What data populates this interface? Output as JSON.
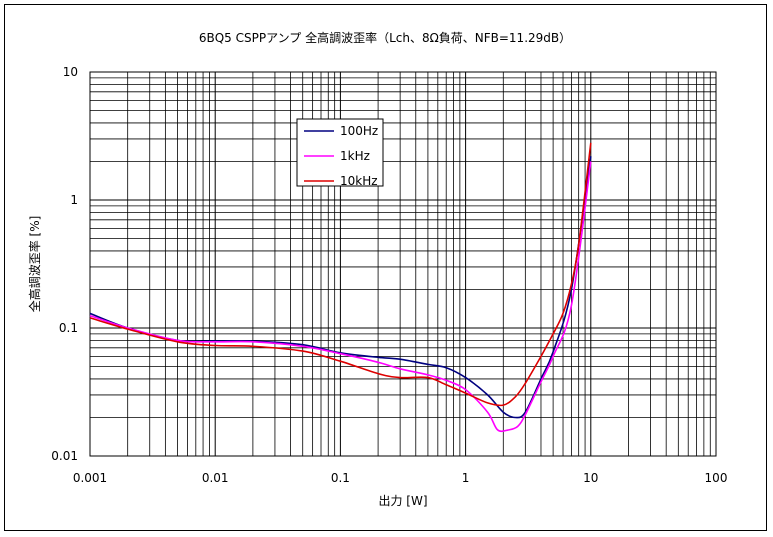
{
  "chart_data": {
    "type": "line",
    "title": "6BQ5 CSPPアンプ 全高調波歪率（Lch、8Ω負荷、NFB=11.29dB）",
    "xlabel": "出力 [W]",
    "ylabel": "全高調波歪率 [%]",
    "x_scale": "log",
    "y_scale": "log",
    "xlim": [
      0.001,
      100
    ],
    "ylim": [
      0.01,
      10
    ],
    "x_ticks": [
      0.001,
      0.01,
      0.1,
      1,
      10,
      100
    ],
    "x_tick_labels": [
      "0.001",
      "0.01",
      "0.1",
      "1",
      "10",
      "100"
    ],
    "y_ticks": [
      0.01,
      0.1,
      1,
      10
    ],
    "y_tick_labels": [
      "0.01",
      "0.1",
      "1",
      "10"
    ],
    "grid": true,
    "legend": "upper-left",
    "series": [
      {
        "name": "100Hz",
        "color": "#000080",
        "x": [
          0.001,
          0.002,
          0.005,
          0.01,
          0.02,
          0.05,
          0.1,
          0.2,
          0.3,
          0.5,
          0.7,
          1.0,
          1.5,
          2.0,
          2.5,
          3.0,
          4.0,
          5.0,
          7.0,
          10.0
        ],
        "y": [
          0.13,
          0.1,
          0.08,
          0.079,
          0.079,
          0.074,
          0.064,
          0.059,
          0.057,
          0.052,
          0.049,
          0.041,
          0.03,
          0.022,
          0.02,
          0.022,
          0.04,
          0.065,
          0.2,
          2.2
        ]
      },
      {
        "name": "1kHz",
        "color": "#ff00ff",
        "x": [
          0.001,
          0.002,
          0.005,
          0.01,
          0.02,
          0.05,
          0.1,
          0.2,
          0.3,
          0.5,
          0.7,
          1.0,
          1.5,
          1.8,
          2.2,
          2.6,
          3.0,
          4.0,
          5.0,
          7.0,
          10.0
        ],
        "y": [
          0.125,
          0.1,
          0.08,
          0.078,
          0.078,
          0.072,
          0.063,
          0.054,
          0.048,
          0.043,
          0.039,
          0.033,
          0.022,
          0.016,
          0.016,
          0.017,
          0.021,
          0.038,
          0.06,
          0.15,
          2.0
        ]
      },
      {
        "name": "10kHz",
        "color": "#dd0000",
        "x": [
          0.001,
          0.002,
          0.005,
          0.01,
          0.02,
          0.05,
          0.1,
          0.2,
          0.3,
          0.5,
          0.7,
          1.0,
          1.5,
          2.0,
          2.5,
          3.0,
          4.0,
          5.0,
          6.0,
          7.0,
          8.0,
          10.0
        ],
        "y": [
          0.12,
          0.098,
          0.078,
          0.073,
          0.072,
          0.066,
          0.055,
          0.044,
          0.041,
          0.041,
          0.036,
          0.031,
          0.026,
          0.025,
          0.029,
          0.037,
          0.06,
          0.09,
          0.13,
          0.22,
          0.45,
          2.8
        ]
      }
    ]
  }
}
